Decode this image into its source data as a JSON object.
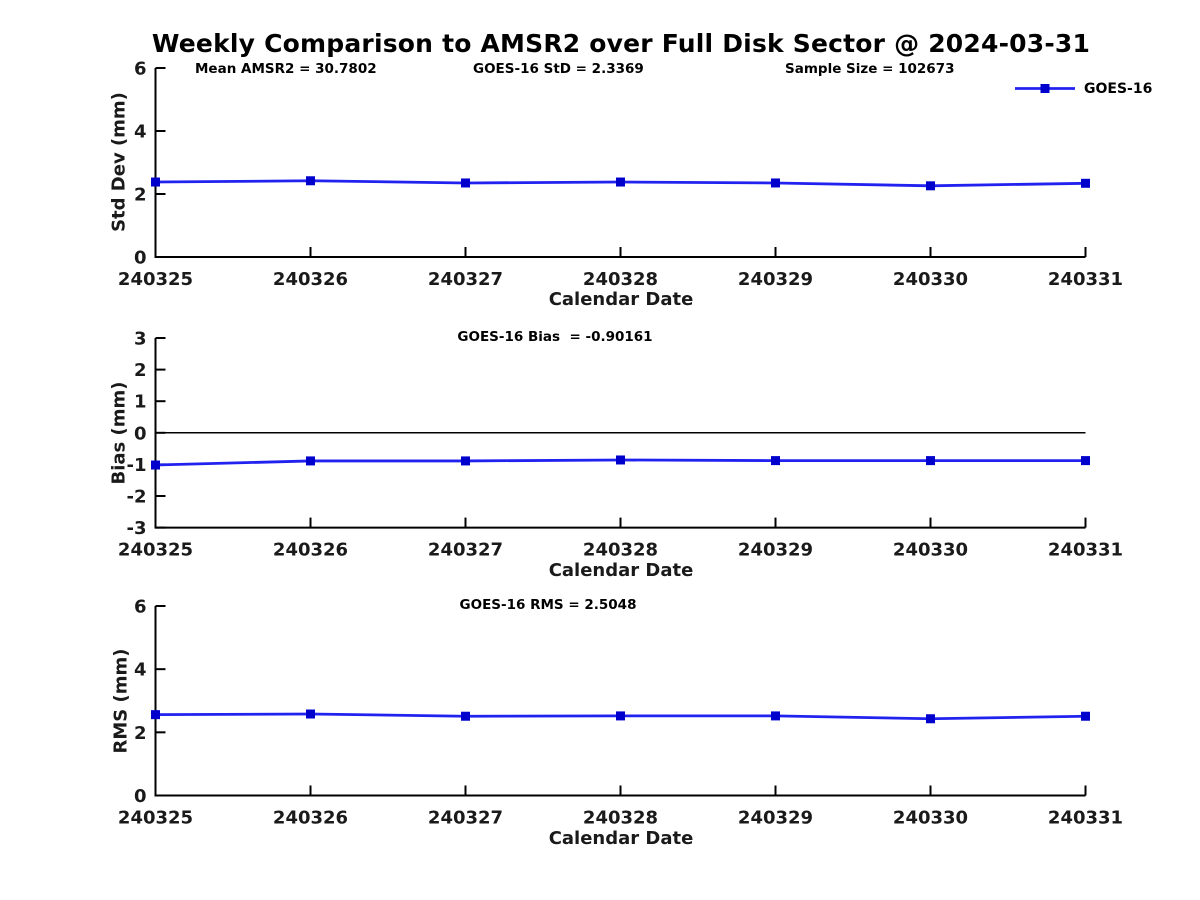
{
  "title": "Weekly Comparison to AMSR2 over Full Disk Sector @ 2024-03-31",
  "legend": {
    "label": "GOES-16"
  },
  "colors": {
    "line": "#2222f0",
    "marker": "#0000cd",
    "axis": "#000000",
    "zero_line": "#000000",
    "background": "#ffffff"
  },
  "stats": {
    "mean_amsr2": "30.7802",
    "goes16_std": "2.3369",
    "sample_size": "102673",
    "goes16_bias": "-0.90161",
    "goes16_rms": "2.5048"
  },
  "chart_data": [
    {
      "type": "line",
      "ylabel": "Std Dev (mm)",
      "xlabel": "Calendar Date",
      "ylim": [
        0,
        6
      ],
      "yticks": [
        0,
        2,
        4,
        6
      ],
      "grid": false,
      "legend_position": "top-right",
      "annotations": [
        "Mean AMSR2 = 30.7802",
        "GOES-16 StD = 2.3369",
        "Sample Size = 102673"
      ],
      "categories": [
        "240325",
        "240326",
        "240327",
        "240328",
        "240329",
        "240330",
        "240331"
      ],
      "series": [
        {
          "name": "GOES-16",
          "values": [
            2.38,
            2.42,
            2.35,
            2.38,
            2.35,
            2.26,
            2.34
          ]
        }
      ]
    },
    {
      "type": "line",
      "ylabel": "Bias (mm)",
      "xlabel": "Calendar Date",
      "ylim": [
        -3,
        3
      ],
      "yticks": [
        -3,
        -2,
        -1,
        0,
        1,
        2,
        3
      ],
      "zero_line": true,
      "grid": false,
      "annotations": [
        "GOES-16 Bias  = -0.90161"
      ],
      "categories": [
        "240325",
        "240326",
        "240327",
        "240328",
        "240329",
        "240330",
        "240331"
      ],
      "series": [
        {
          "name": "GOES-16",
          "values": [
            -1.02,
            -0.89,
            -0.89,
            -0.86,
            -0.88,
            -0.88,
            -0.88
          ]
        }
      ]
    },
    {
      "type": "line",
      "ylabel": "RMS (mm)",
      "xlabel": "Calendar Date",
      "ylim": [
        0,
        6
      ],
      "yticks": [
        0,
        2,
        4,
        6
      ],
      "grid": false,
      "annotations": [
        "GOES-16 RMS = 2.5048"
      ],
      "categories": [
        "240325",
        "240326",
        "240327",
        "240328",
        "240329",
        "240330",
        "240331"
      ],
      "series": [
        {
          "name": "GOES-16",
          "values": [
            2.56,
            2.58,
            2.51,
            2.52,
            2.52,
            2.43,
            2.51
          ]
        }
      ]
    }
  ]
}
